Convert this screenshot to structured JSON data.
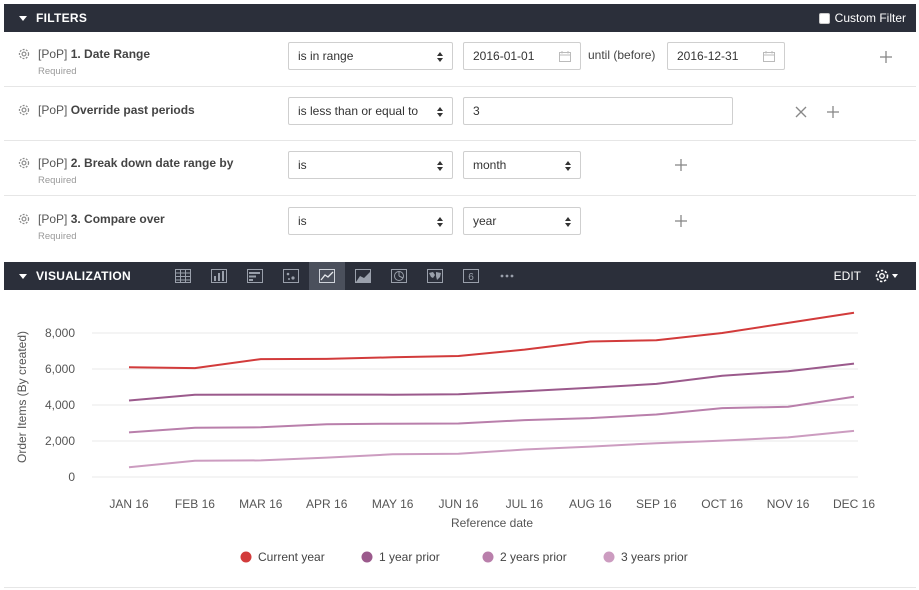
{
  "filters": {
    "title": "FILTERS",
    "custom_filter_label": "Custom Filter",
    "rows": [
      {
        "prefix": "[PoP] ",
        "name": "1. Date Range",
        "required": "Required",
        "operator": "is in range",
        "value_start": "2016-01-01",
        "until_label": "until (before)",
        "value_end": "2016-12-31"
      },
      {
        "prefix": "[PoP] ",
        "name": "Override past periods",
        "required": "",
        "operator": "is less than or equal to",
        "value": "3"
      },
      {
        "prefix": "[PoP] ",
        "name": "2. Break down date range by",
        "required": "Required",
        "operator": "is",
        "value": "month"
      },
      {
        "prefix": "[PoP] ",
        "name": "3. Compare over",
        "required": "Required",
        "operator": "is",
        "value": "year"
      }
    ]
  },
  "visualization": {
    "title": "VISUALIZATION",
    "edit_label": "EDIT",
    "toolbar_icons": [
      "table-icon",
      "column-chart-icon",
      "bar-chart-icon",
      "scatter-chart-icon",
      "line-chart-icon",
      "area-chart-icon",
      "pie-chart-icon",
      "map-icon",
      "single-value-icon",
      "more-icon"
    ],
    "single_value_glyph": "6",
    "more_glyph": "•••",
    "active_icon": "line-chart-icon"
  },
  "chart_data": {
    "type": "line",
    "xlabel": "Reference date",
    "ylabel": "Order Items (By created)",
    "categories": [
      "JAN 16",
      "FEB 16",
      "MAR 16",
      "APR 16",
      "MAY 16",
      "JUN 16",
      "JUL 16",
      "AUG 16",
      "SEP 16",
      "OCT 16",
      "NOV 16",
      "DEC 16"
    ],
    "y_ticks": [
      0,
      2000,
      4000,
      6000,
      8000
    ],
    "y_tick_labels": [
      "0",
      "2,000",
      "4,000",
      "6,000",
      "8,000"
    ],
    "ylim": [
      0,
      9000
    ],
    "grid": true,
    "legend_position": "bottom",
    "series": [
      {
        "name": "Current year",
        "color": "#d23b3b",
        "values": [
          6100,
          6050,
          6550,
          6560,
          6650,
          6720,
          7080,
          7530,
          7600,
          8000,
          8560,
          9120
        ]
      },
      {
        "name": "1 year prior",
        "color": "#9b5a8c",
        "values": [
          4250,
          4570,
          4580,
          4580,
          4570,
          4600,
          4760,
          4960,
          5170,
          5620,
          5880,
          6300
        ]
      },
      {
        "name": "2 years prior",
        "color": "#b97fab",
        "values": [
          2480,
          2740,
          2760,
          2930,
          2960,
          2970,
          3160,
          3270,
          3470,
          3830,
          3900,
          4460
        ]
      },
      {
        "name": "3 years prior",
        "color": "#cc9cc0",
        "values": [
          540,
          900,
          920,
          1080,
          1260,
          1290,
          1530,
          1690,
          1880,
          2020,
          2200,
          2560
        ]
      }
    ]
  }
}
